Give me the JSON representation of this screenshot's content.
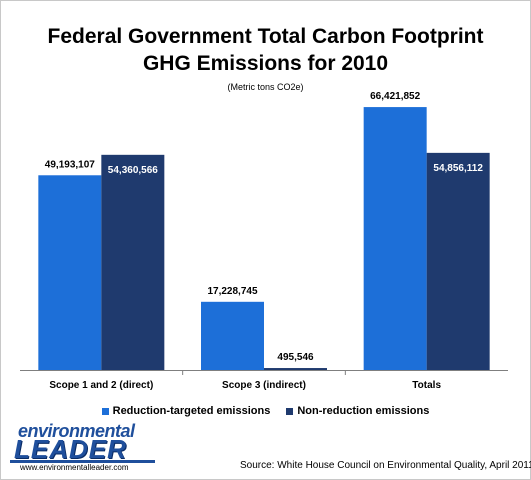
{
  "colors": {
    "series_1": "#1d6fd8",
    "series_2": "#1f3a6e",
    "logo": "#1f4f9c",
    "axis": "#7f7f7f"
  },
  "chart_data": {
    "type": "bar",
    "title": "Federal Government Total Carbon Footprint GHG Emissions for 2010",
    "title_lines": [
      "Federal Government Total Carbon Footprint",
      "GHG Emissions for 2010"
    ],
    "subtitle": "(Metric tons CO2e)",
    "categories": [
      "Scope 1 and 2 (direct)",
      "Scope 3 (indirect)",
      "Totals"
    ],
    "series": [
      {
        "name": "Reduction-targeted emissions",
        "values": [
          49193107,
          17228745,
          66421852
        ],
        "labels": [
          "49,193,107",
          "17,228,745",
          "66,421,852"
        ]
      },
      {
        "name": "Non-reduction emissions",
        "values": [
          54360566,
          495546,
          54856112
        ],
        "labels": [
          "54,360,566",
          "495,546",
          "54,856,112"
        ]
      }
    ],
    "ylim": [
      0,
      72000000
    ],
    "grid": false,
    "legend_position": "bottom"
  },
  "logo": {
    "line1": "environmental",
    "line2": "LEADER",
    "url": "www.environmentalleader.com"
  },
  "source": "Source: White House Council on Environmental Quality, April 2011"
}
